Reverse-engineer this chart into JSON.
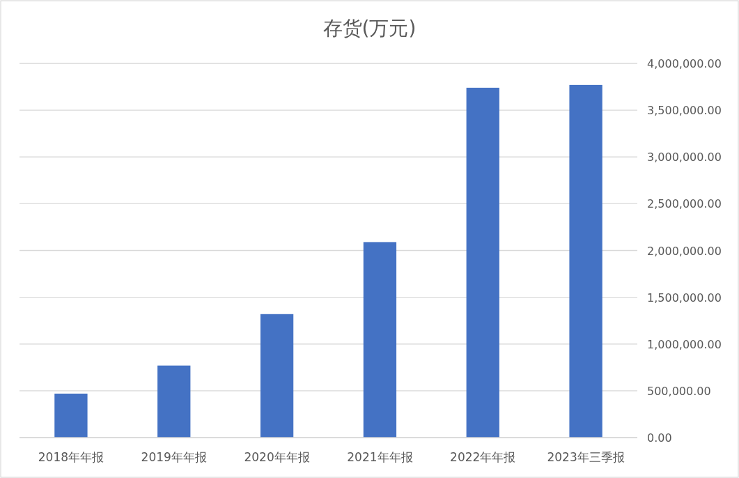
{
  "chart_data": {
    "type": "bar",
    "title": "存货(万元)",
    "categories": [
      "2018年年报",
      "2019年年报",
      "2020年年报",
      "2021年年报",
      "2022年年报",
      "2023年三季报"
    ],
    "values": [
      470000,
      770000,
      1320000,
      2090000,
      3740000,
      3770000
    ],
    "color": "#4472c4",
    "ylim": [
      0,
      4000000
    ],
    "yticks": [
      {
        "value": 0,
        "label": "0.00"
      },
      {
        "value": 500000,
        "label": "500,000.00"
      },
      {
        "value": 1000000,
        "label": "1,000,000.00"
      },
      {
        "value": 1500000,
        "label": "1,500,000.00"
      },
      {
        "value": 2000000,
        "label": "2,000,000.00"
      },
      {
        "value": 2500000,
        "label": "2,500,000.00"
      },
      {
        "value": 3000000,
        "label": "3,000,000.00"
      },
      {
        "value": 3500000,
        "label": "3,500,000.00"
      },
      {
        "value": 4000000,
        "label": "4,000,000.00"
      }
    ],
    "grid": "y"
  }
}
